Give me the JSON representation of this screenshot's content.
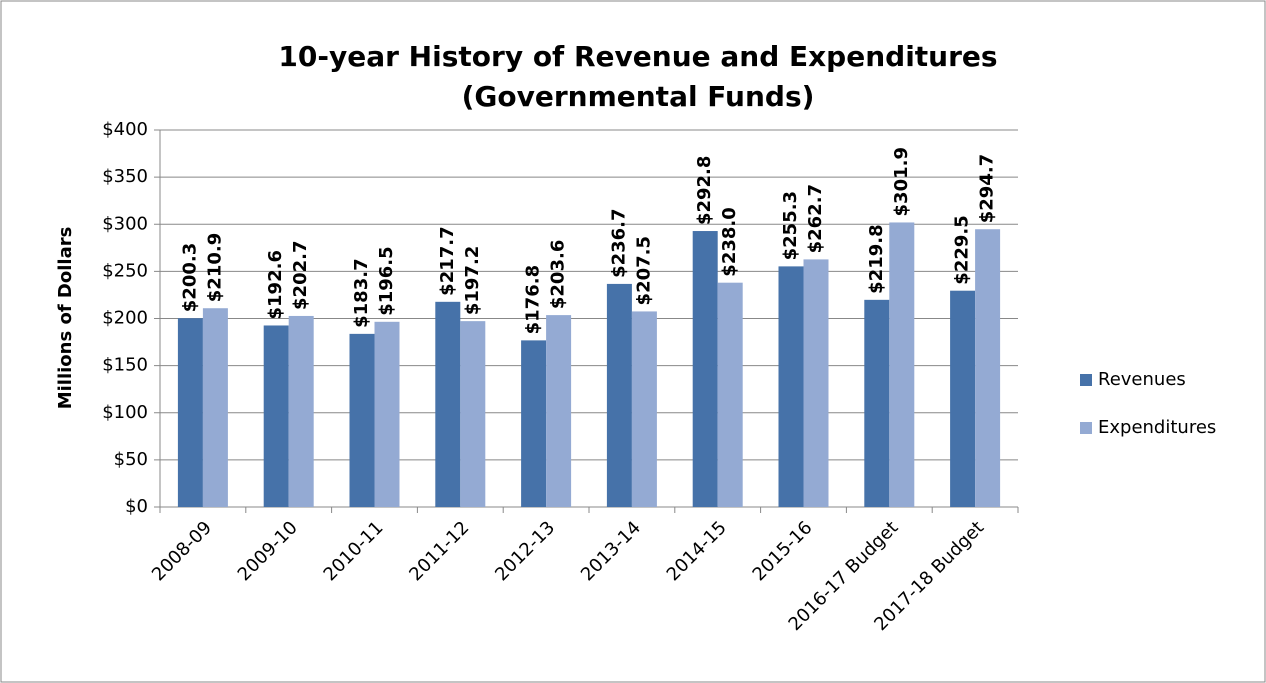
{
  "chart_data": {
    "type": "bar",
    "title": [
      "10-year History of Revenue and Expenditures",
      "(Governmental Funds)"
    ],
    "y_label": "Millions of Dollars",
    "categories": [
      "2008-09",
      "2009-10",
      "2010-11",
      "2011-12",
      "2012-13",
      "2013-14",
      "2014-15",
      "2015-16",
      "2016-17 Budget",
      "2017-18 Budget"
    ],
    "series": [
      {
        "name": "Revenues",
        "color": "#4672a9",
        "values": [
          200.3,
          192.6,
          183.7,
          217.7,
          176.8,
          236.7,
          292.8,
          255.3,
          219.8,
          229.5
        ],
        "value_labels": [
          "$200.3",
          "$192.6",
          "$183.7",
          "$217.7",
          "$176.8",
          "$236.7",
          "$292.8",
          "$255.3",
          "$219.8",
          "$229.5"
        ]
      },
      {
        "name": "Expenditures",
        "color": "#94aad3",
        "values": [
          210.9,
          202.7,
          196.5,
          197.2,
          203.6,
          207.5,
          238.0,
          262.7,
          301.9,
          294.7
        ],
        "value_labels": [
          "$210.9",
          "$202.7",
          "$196.5",
          "$197.2",
          "$203.6",
          "$207.5",
          "$238.0",
          "$262.7",
          "$301.9",
          "$294.7"
        ]
      }
    ],
    "ylim": [
      0,
      400
    ],
    "yticks": [
      {
        "value": 0,
        "label": "$0"
      },
      {
        "value": 50,
        "label": "$50"
      },
      {
        "value": 100,
        "label": "$100"
      },
      {
        "value": 150,
        "label": "$150"
      },
      {
        "value": 200,
        "label": "$200"
      },
      {
        "value": 250,
        "label": "$250"
      },
      {
        "value": 300,
        "label": "$300"
      },
      {
        "value": 350,
        "label": "$350"
      },
      {
        "value": 400,
        "label": "$400"
      }
    ],
    "grid": true,
    "legend": "right"
  }
}
